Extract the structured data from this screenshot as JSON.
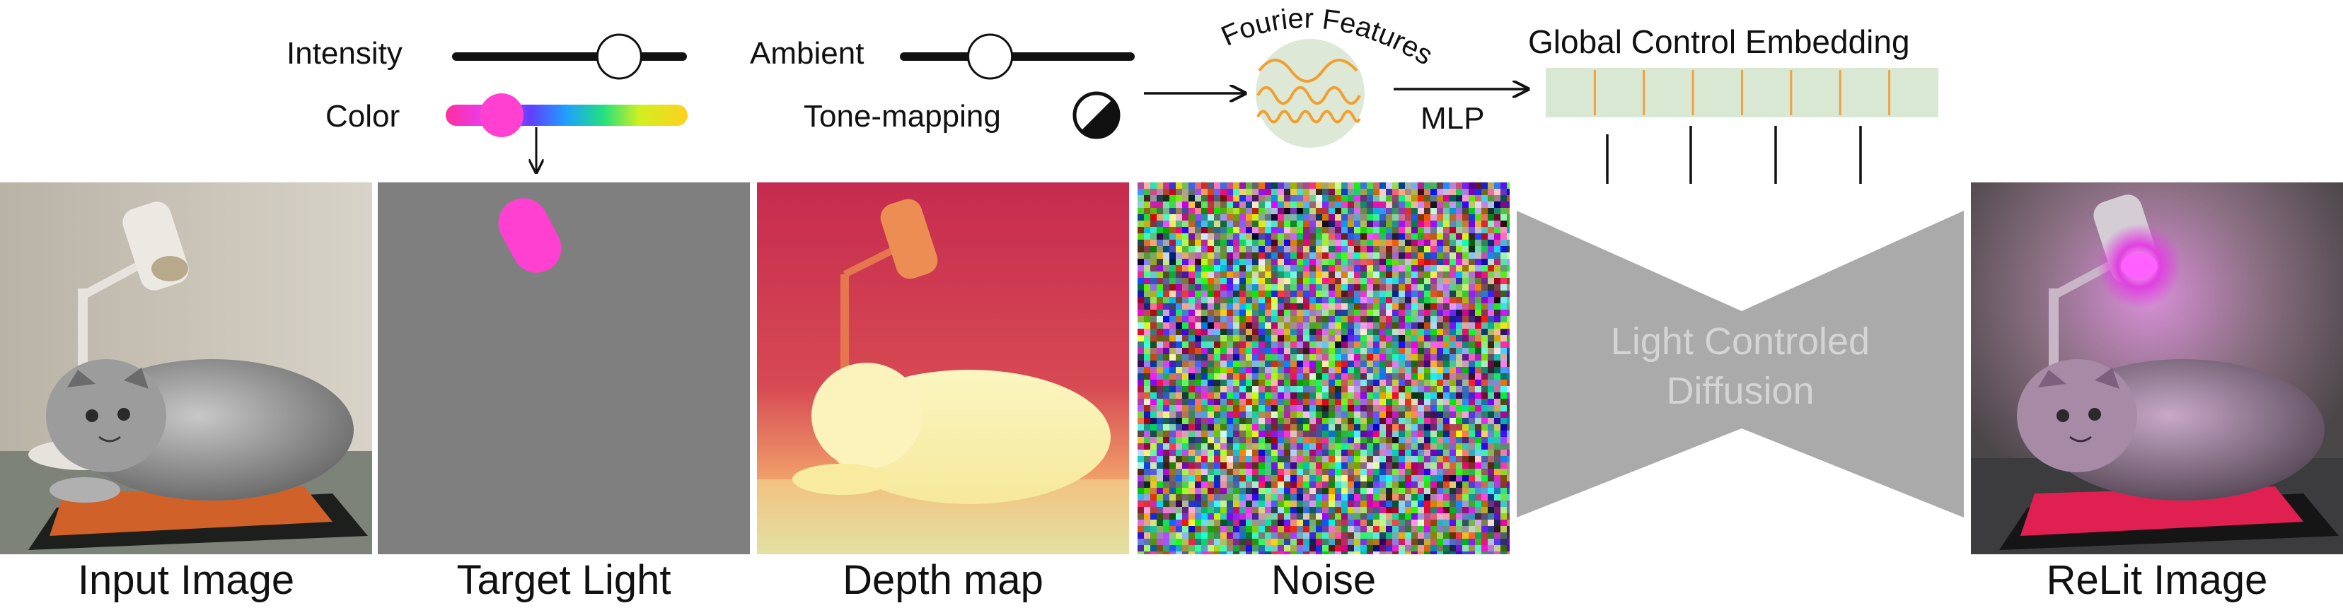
{
  "controls": {
    "intensity_label": "Intensity",
    "color_label": "Color",
    "ambient_label": "Ambient",
    "tonemapping_label": "Tone-mapping",
    "intensity_level": 0.72,
    "color_hue_level": 0.2,
    "ambient_level": 0.38,
    "color_swatch": "#ff40d0"
  },
  "fourier": {
    "title": "Fourier Features",
    "mlp_label": "MLP",
    "wave_color": "#f0a030",
    "bubble_color": "#dde8d6"
  },
  "embedding": {
    "title": "Global Control Embedding",
    "cell_count": 8,
    "fill_color": "#d8e8d2",
    "line_color": "#f0a040"
  },
  "diffusion": {
    "label_line1": "Light Controled",
    "label_line2": "Diffusion",
    "color": "#aaaaaa"
  },
  "panels": [
    {
      "caption": "Input Image",
      "name": "input-image"
    },
    {
      "caption": "Target Light",
      "name": "target-light"
    },
    {
      "caption": "Depth map",
      "name": "depth-map"
    },
    {
      "caption": "Noise",
      "name": "noise"
    }
  ],
  "output": {
    "caption": "ReLit Image"
  }
}
